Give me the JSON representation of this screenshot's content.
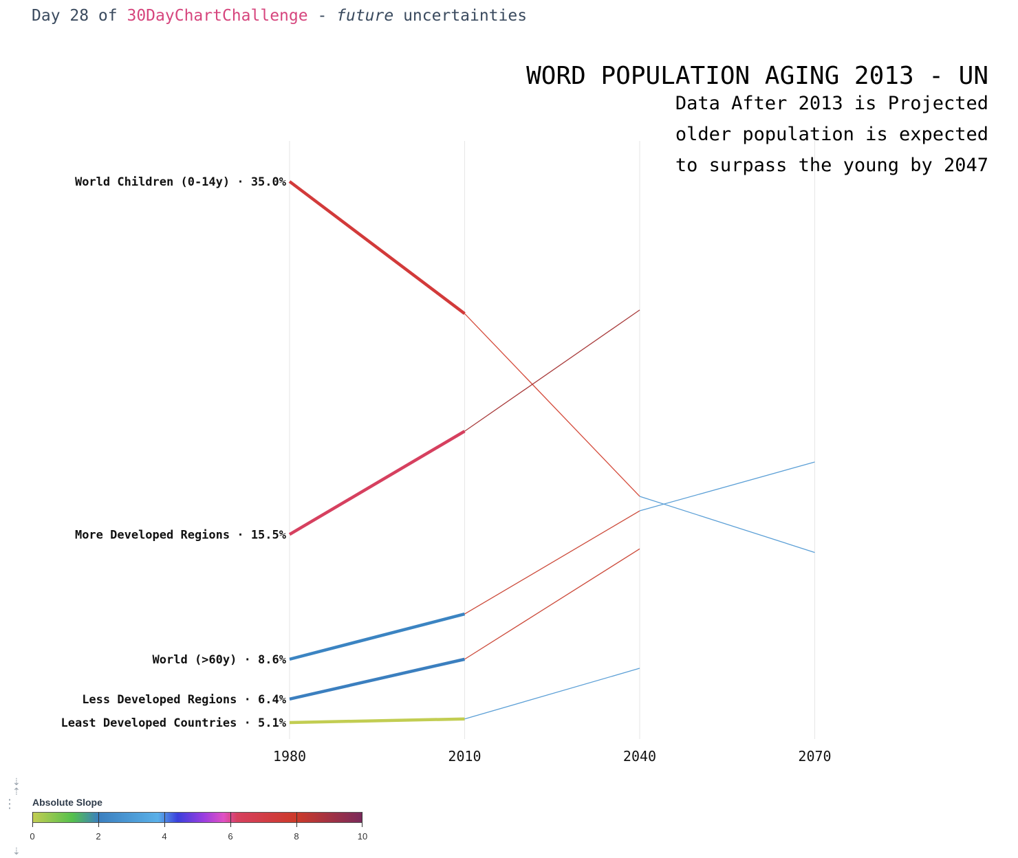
{
  "header": {
    "prefix": "Day 28 of ",
    "challenge": "30DayChartChallenge",
    "separator": " - ",
    "emphasis": "future",
    "suffix": " uncertainties"
  },
  "colors": {
    "highlight": "#d6457d",
    "header_text": "#3a4a5e",
    "grid": "#e6e6e6"
  },
  "chart_data": {
    "type": "line",
    "title": "WORD POPULATION AGING 2013 - UN",
    "subtitle_lines": [
      "Data After 2013 is Projected",
      "older population is expected",
      "to surpass the young by 2047"
    ],
    "x": [
      1980,
      2010,
      2040,
      2070
    ],
    "y_range": [
      3.0,
      37.5
    ],
    "grid": "vertical",
    "series": [
      {
        "name": "World Children (0-14y)",
        "label": "World Children (0-14y) · 35.0%",
        "points": [
          [
            1980,
            35.0
          ],
          [
            2010,
            27.7
          ],
          [
            2040,
            17.6
          ],
          [
            2070,
            14.5
          ]
        ],
        "colors": [
          "#d23a3a",
          "#d44a3a",
          "#5b9fd6"
        ]
      },
      {
        "name": "More Developed Regions",
        "label": "More Developed Regions · 15.5%",
        "points": [
          [
            1980,
            15.5
          ],
          [
            2010,
            21.2
          ],
          [
            2040,
            27.9
          ]
        ],
        "colors": [
          "#d6405f",
          "#a83a3a"
        ]
      },
      {
        "name": "World (>60y)",
        "label": "World (>60y) · 8.6%",
        "points": [
          [
            1980,
            8.6
          ],
          [
            2010,
            11.1
          ],
          [
            2040,
            16.8
          ],
          [
            2070,
            19.5
          ]
        ],
        "colors": [
          "#3b84c2",
          "#cc4a3a",
          "#5b9fd6"
        ]
      },
      {
        "name": "Less Developed Regions",
        "label": "Less Developed Regions · 6.4%",
        "points": [
          [
            1980,
            6.4
          ],
          [
            2010,
            8.6
          ],
          [
            2040,
            14.7
          ]
        ],
        "colors": [
          "#3b7fbf",
          "#cc4a3a"
        ]
      },
      {
        "name": "Least Developed Countries",
        "label": "Least Developed Countries · 5.1%",
        "points": [
          [
            1980,
            5.1
          ],
          [
            2010,
            5.3
          ],
          [
            2040,
            8.1
          ]
        ],
        "colors": [
          "#c2cd52",
          "#5b9fd6"
        ]
      }
    ],
    "legend": {
      "title": "Absolute Slope",
      "ticks": [
        "0",
        "2",
        "4",
        "6",
        "8",
        "10"
      ],
      "min": 0,
      "max": 10,
      "colors": [
        [
          0,
          "#c2cd52"
        ],
        [
          0.12,
          "#55c04d"
        ],
        [
          0.2,
          "#3b7fbf"
        ],
        [
          0.38,
          "#5ab0e8"
        ],
        [
          0.44,
          "#3a3fdc"
        ],
        [
          0.52,
          "#9b3ee0"
        ],
        [
          0.58,
          "#e050c4"
        ],
        [
          0.62,
          "#d6405f"
        ],
        [
          0.8,
          "#cc3a2a"
        ],
        [
          1.0,
          "#7a2a5a"
        ]
      ],
      "placement": "bottom-left"
    }
  }
}
